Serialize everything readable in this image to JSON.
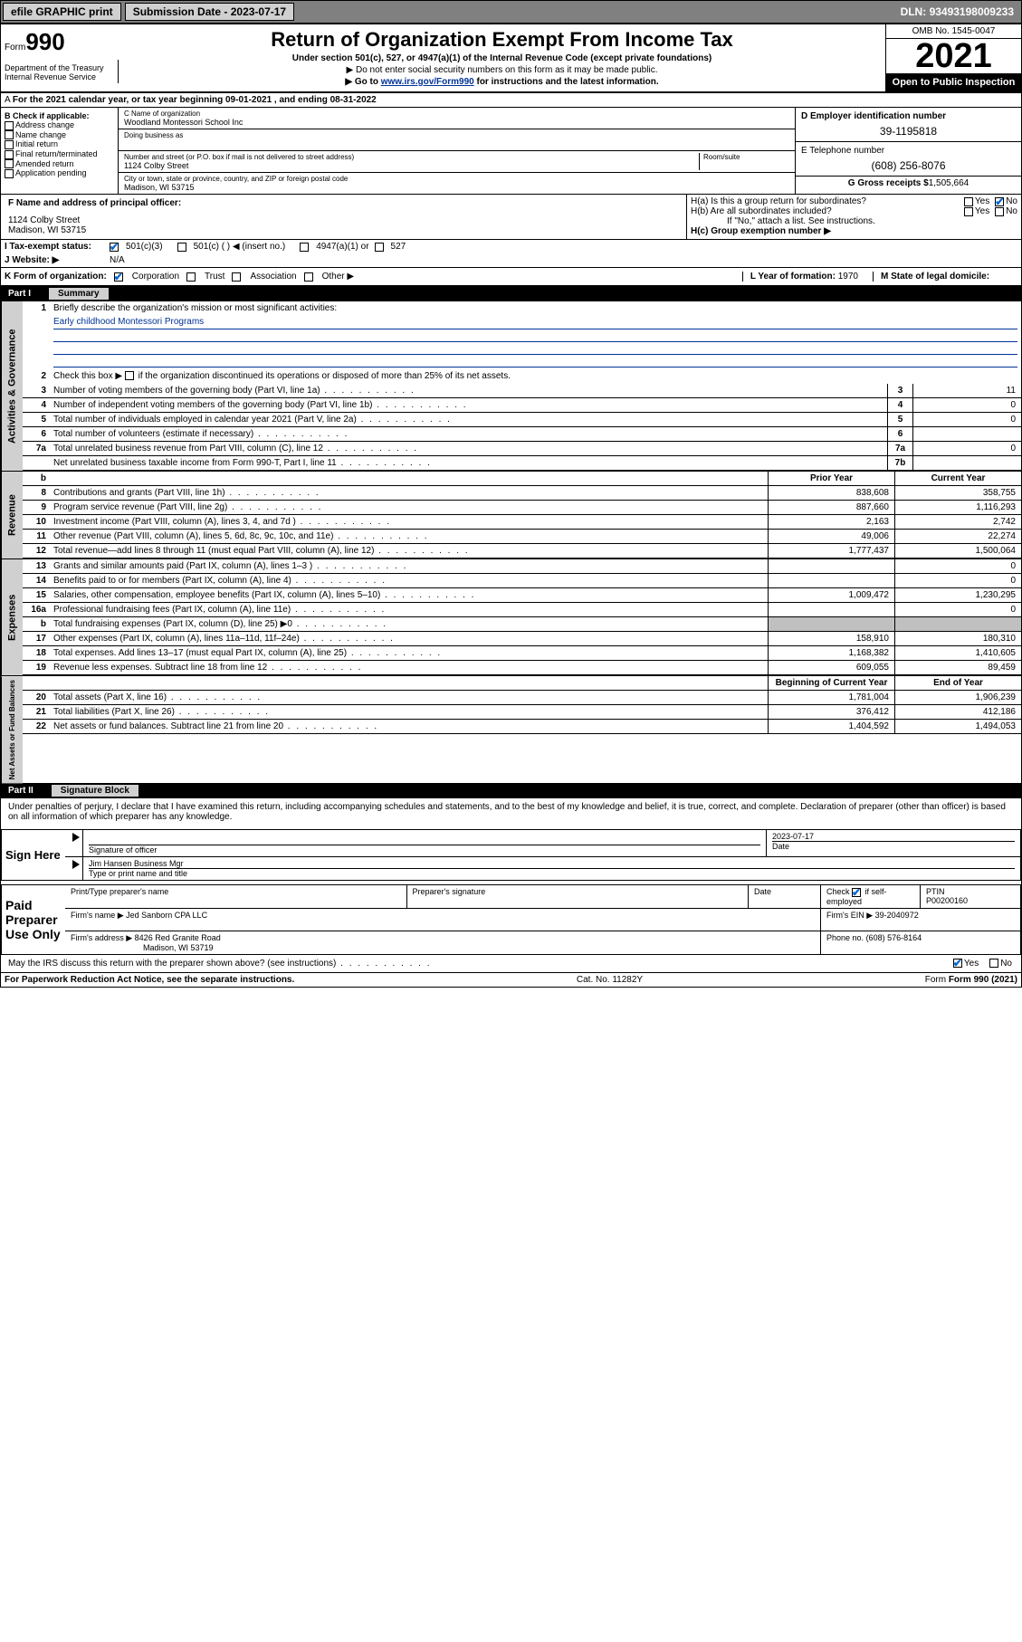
{
  "topbar": {
    "efile_label": "efile GRAPHIC print",
    "sub_label": "Submission Date - ",
    "sub_date": "2023-07-17",
    "dln_label": "DLN: ",
    "dln": "93493198009233"
  },
  "header": {
    "form_prefix": "Form",
    "form_num": "990",
    "title": "Return of Organization Exempt From Income Tax",
    "sub1": "Under section 501(c), 527, or 4947(a)(1) of the Internal Revenue Code (except private foundations)",
    "sub2": "▶ Do not enter social security numbers on this form as it may be made public.",
    "sub3_prefix": "▶ Go to ",
    "sub3_link": "www.irs.gov/Form990",
    "sub3_suffix": " for instructions and the latest information.",
    "omb": "OMB No. 1545-0047",
    "year": "2021",
    "inspect": "Open to Public Inspection",
    "dept": "Department of the Treasury",
    "irs": "Internal Revenue Service"
  },
  "calyear": "For the 2021 calendar year, or tax year beginning 09-01-2021    , and ending 08-31-2022",
  "checkB": {
    "title": "B Check if applicable:",
    "items": [
      "Address change",
      "Name change",
      "Initial return",
      "Final return/terminated",
      "Amended return",
      "Application pending"
    ]
  },
  "org": {
    "c_label": "C Name of organization",
    "name": "Woodland Montessori School Inc",
    "dba": "Doing business as",
    "addr_label": "Number and street (or P.O. box if mail is not delivered to street address)",
    "room_label": "Room/suite",
    "addr": "1124 Colby Street",
    "city_label": "City or town, state or province, country, and ZIP or foreign postal code",
    "city": "Madison, WI  53715"
  },
  "colD": {
    "ein_label": "D Employer identification number",
    "ein": "39-1195818",
    "tel_label": "E Telephone number",
    "tel": "(608) 256-8076",
    "gross_label": "G Gross receipts $",
    "gross": "1,505,664"
  },
  "officer": {
    "f_label": "F  Name and address of principal officer:",
    "addr1": "1124 Colby Street",
    "addr2": "Madison, WI  53715"
  },
  "groupH": {
    "ha": "H(a)  Is this a group return for subordinates?",
    "hb": "H(b)  Are all subordinates included?",
    "hb_note": "If \"No,\" attach a list. See instructions.",
    "hc": "H(c)  Group exemption number ▶",
    "yes": "Yes",
    "no": "No"
  },
  "tax": {
    "i_label": "I   Tax-exempt status:",
    "c3": "501(c)(3)",
    "c_other": "501(c) (   ) ◀ (insert no.)",
    "a1": "4947(a)(1) or",
    "s527": "527",
    "j_label": "J   Website: ▶",
    "website": "N/A"
  },
  "korg": {
    "k_label": "K Form of organization:",
    "corp": "Corporation",
    "trust": "Trust",
    "assoc": "Association",
    "other": "Other ▶",
    "l_label": "L Year of formation:",
    "l_val": "1970",
    "m_label": "M State of legal domicile:"
  },
  "part1": {
    "label": "Part I",
    "title": "Summary"
  },
  "mission": {
    "q1": "Briefly describe the organization's mission or most significant activities:",
    "ans": "Early childhood Montessori Programs",
    "q2": "Check this box ▶",
    "q2b": "if the organization discontinued its operations or disposed of more than 25% of its net assets."
  },
  "gov_lines": [
    {
      "n": "3",
      "d": "Number of voting members of the governing body (Part VI, line 1a)",
      "box": "3",
      "v": "11"
    },
    {
      "n": "4",
      "d": "Number of independent voting members of the governing body (Part VI, line 1b)",
      "box": "4",
      "v": "0"
    },
    {
      "n": "5",
      "d": "Total number of individuals employed in calendar year 2021 (Part V, line 2a)",
      "box": "5",
      "v": "0"
    },
    {
      "n": "6",
      "d": "Total number of volunteers (estimate if necessary)",
      "box": "6",
      "v": ""
    },
    {
      "n": "7a",
      "d": "Total unrelated business revenue from Part VIII, column (C), line 12",
      "box": "7a",
      "v": "0"
    },
    {
      "n": "",
      "d": "Net unrelated business taxable income from Form 990-T, Part I, line 11",
      "box": "7b",
      "v": ""
    }
  ],
  "col_headers": {
    "b": "b",
    "prior": "Prior Year",
    "curr": "Current Year"
  },
  "revenue_lines": [
    {
      "n": "8",
      "d": "Contributions and grants (Part VIII, line 1h)",
      "p": "838,608",
      "c": "358,755"
    },
    {
      "n": "9",
      "d": "Program service revenue (Part VIII, line 2g)",
      "p": "887,660",
      "c": "1,116,293"
    },
    {
      "n": "10",
      "d": "Investment income (Part VIII, column (A), lines 3, 4, and 7d )",
      "p": "2,163",
      "c": "2,742"
    },
    {
      "n": "11",
      "d": "Other revenue (Part VIII, column (A), lines 5, 6d, 8c, 9c, 10c, and 11e)",
      "p": "49,006",
      "c": "22,274"
    },
    {
      "n": "12",
      "d": "Total revenue—add lines 8 through 11 (must equal Part VIII, column (A), line 12)",
      "p": "1,777,437",
      "c": "1,500,064"
    }
  ],
  "expense_lines": [
    {
      "n": "13",
      "d": "Grants and similar amounts paid (Part IX, column (A), lines 1–3 )",
      "p": "",
      "c": "0"
    },
    {
      "n": "14",
      "d": "Benefits paid to or for members (Part IX, column (A), line 4)",
      "p": "",
      "c": "0"
    },
    {
      "n": "15",
      "d": "Salaries, other compensation, employee benefits (Part IX, column (A), lines 5–10)",
      "p": "1,009,472",
      "c": "1,230,295"
    },
    {
      "n": "16a",
      "d": "Professional fundraising fees (Part IX, column (A), line 11e)",
      "p": "",
      "c": "0"
    },
    {
      "n": "b",
      "d": "Total fundraising expenses (Part IX, column (D), line 25) ▶0",
      "p": "SHADE",
      "c": "SHADE"
    },
    {
      "n": "17",
      "d": "Other expenses (Part IX, column (A), lines 11a–11d, 11f–24e)",
      "p": "158,910",
      "c": "180,310"
    },
    {
      "n": "18",
      "d": "Total expenses. Add lines 13–17 (must equal Part IX, column (A), line 25)",
      "p": "1,168,382",
      "c": "1,410,605"
    },
    {
      "n": "19",
      "d": "Revenue less expenses. Subtract line 18 from line 12",
      "p": "609,055",
      "c": "89,459"
    }
  ],
  "net_headers": {
    "prior": "Beginning of Current Year",
    "curr": "End of Year"
  },
  "net_lines": [
    {
      "n": "20",
      "d": "Total assets (Part X, line 16)",
      "p": "1,781,004",
      "c": "1,906,239"
    },
    {
      "n": "21",
      "d": "Total liabilities (Part X, line 26)",
      "p": "376,412",
      "c": "412,186"
    },
    {
      "n": "22",
      "d": "Net assets or fund balances. Subtract line 21 from line 20",
      "p": "1,404,592",
      "c": "1,494,053"
    }
  ],
  "vtabs": {
    "gov": "Activities & Governance",
    "rev": "Revenue",
    "exp": "Expenses",
    "net": "Net Assets or Fund Balances"
  },
  "part2": {
    "label": "Part II",
    "title": "Signature Block",
    "decl": "Under penalties of perjury, I declare that I have examined this return, including accompanying schedules and statements, and to the best of my knowledge and belief, it is true, correct, and complete. Declaration of preparer (other than officer) is based on all information of which preparer has any knowledge."
  },
  "sign": {
    "here": "Sign Here",
    "sig_officer": "Signature of officer",
    "date": "Date",
    "date_val": "2023-07-17",
    "name_title": "Jim Hansen  Business Mgr",
    "name_label": "Type or print name and title"
  },
  "preparer": {
    "label": "Paid Preparer Use Only",
    "print_name": "Print/Type preparer's name",
    "sig": "Preparer's signature",
    "date": "Date",
    "check_label": "Check",
    "self_emp": "if self-employed",
    "ptin_label": "PTIN",
    "ptin": "P00200160",
    "firm_name_label": "Firm's name    ▶",
    "firm_name": "Jed Sanborn CPA LLC",
    "firm_ein_label": "Firm's EIN ▶",
    "firm_ein": "39-2040972",
    "firm_addr_label": "Firm's address ▶",
    "firm_addr1": "8426 Red Granite Road",
    "firm_addr2": "Madison, WI  53719",
    "phone_label": "Phone no.",
    "phone": "(608) 576-8164"
  },
  "footer": {
    "discuss": "May the IRS discuss this return with the preparer shown above? (see instructions)",
    "yes": "Yes",
    "no": "No",
    "paperwork": "For Paperwork Reduction Act Notice, see the separate instructions.",
    "cat": "Cat. No. 11282Y",
    "form": "Form 990 (2021)"
  }
}
